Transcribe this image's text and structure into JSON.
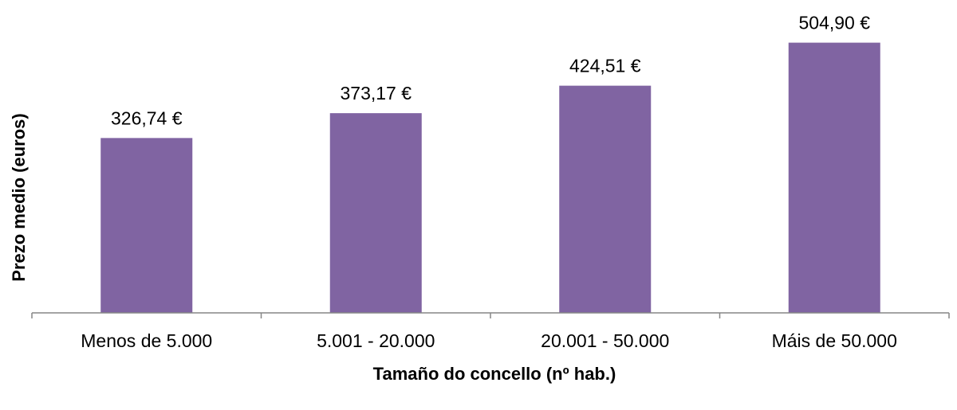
{
  "chart_data": {
    "type": "bar",
    "title": "",
    "xlabel": "Tamaño do concello (nº hab.)",
    "ylabel": "Prezo medio (euros)",
    "categories": [
      "Menos de 5.000",
      "5.001 - 20.000",
      "20.001 - 50.000",
      "Máis de 50.000"
    ],
    "values": [
      326.74,
      373.17,
      424.51,
      504.9
    ],
    "value_labels": [
      "326,74 €",
      "373,17 €",
      "424,51 €",
      "504,90 €"
    ],
    "ylim": [
      0,
      540
    ],
    "grid": false,
    "legend": "none",
    "bar_color": "#8064a2",
    "axis_color": "#868686"
  }
}
